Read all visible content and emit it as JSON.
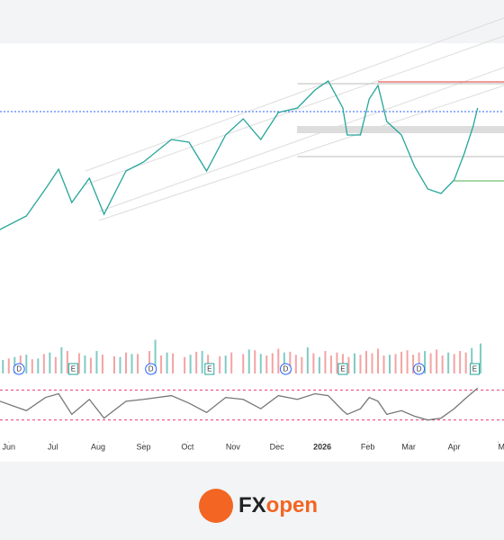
{
  "chart_data": [
    {
      "type": "line",
      "panel": "price",
      "x": [
        -6,
        12,
        25,
        34,
        43,
        55,
        65,
        80,
        92,
        111,
        123,
        135,
        148,
        160,
        172,
        184,
        197,
        209,
        218,
        228,
        231,
        240,
        246,
        252,
        258,
        268,
        277,
        286,
        295,
        304,
        311,
        317,
        320
      ],
      "series": [
        {
          "color": "#26a69a",
          "values": [
            55,
            70,
            100,
            122,
            85,
            112,
            72,
            120,
            130,
            155,
            152,
            120,
            160,
            178,
            155,
            185,
            190,
            210,
            220,
            190,
            160,
            160,
            200,
            215,
            175,
            160,
            125,
            100,
            95,
            110,
            140,
            170,
            190
          ]
        }
      ],
      "levels": [
        {
          "value": 186,
          "from": -6,
          "color": "#2962ff",
          "style": "dotted"
        },
        {
          "value": 219,
          "from": 252,
          "color": "#e53935",
          "style": "solid"
        },
        {
          "value": 217,
          "from": 197,
          "color": "#bbbbbb",
          "style": "solid"
        },
        {
          "value": 136,
          "from": 197,
          "color": "#bbbbbb",
          "style": "solid"
        },
        {
          "value": 109,
          "from": 304,
          "color": "#4caf50",
          "style": "solid"
        }
      ],
      "xlim": [
        -6,
        338
      ],
      "ylim": [
        -50,
        260
      ]
    },
    {
      "type": "bar",
      "panel": "volume",
      "series": [
        {
          "color": "#80cbc4",
          "x": [
            -4,
            4,
            12,
            20,
            28,
            36,
            52,
            60,
            76,
            84,
            100,
            108,
            124,
            132,
            148,
            164,
            172,
            188,
            204,
            212,
            236,
            260,
            284,
            300,
            316,
            322
          ],
          "values": [
            18,
            22,
            25,
            20,
            28,
            35,
            24,
            30,
            22,
            26,
            45,
            28,
            25,
            30,
            24,
            32,
            26,
            28,
            35,
            22,
            27,
            25,
            30,
            28,
            34,
            40
          ]
        },
        {
          "color": "#f4a3a3",
          "x": [
            0,
            8,
            16,
            24,
            32,
            40,
            48,
            56,
            64,
            72,
            80,
            88,
            96,
            104,
            112,
            120,
            128,
            136,
            144,
            152,
            160,
            168,
            176,
            180,
            184,
            192,
            196,
            200,
            208,
            216,
            220,
            224,
            228,
            232,
            240,
            244,
            248,
            252,
            256,
            264,
            268,
            272,
            276,
            280,
            288,
            292,
            296,
            304,
            308,
            312
          ],
          "values": [
            20,
            24,
            19,
            26,
            22,
            30,
            27,
            21,
            25,
            23,
            28,
            26,
            30,
            24,
            27,
            22,
            29,
            25,
            23,
            28,
            26,
            31,
            24,
            27,
            33,
            29,
            25,
            22,
            27,
            30,
            24,
            28,
            26,
            22,
            25,
            30,
            27,
            33,
            24,
            26,
            29,
            31,
            25,
            28,
            27,
            32,
            24,
            26,
            30,
            28
          ]
        }
      ],
      "events": [
        {
          "x": 7,
          "label": "D"
        },
        {
          "x": 44,
          "label": "E"
        },
        {
          "x": 97,
          "label": "D"
        },
        {
          "x": 137,
          "label": "E"
        },
        {
          "x": 189,
          "label": "D"
        },
        {
          "x": 228,
          "label": "E"
        },
        {
          "x": 280,
          "label": "D"
        },
        {
          "x": 318,
          "label": "E"
        }
      ],
      "xlim": [
        -6,
        338
      ],
      "ylim": [
        0,
        60
      ]
    },
    {
      "type": "line",
      "panel": "oscillator",
      "x": [
        -6,
        12,
        25,
        34,
        43,
        55,
        65,
        80,
        92,
        111,
        123,
        135,
        148,
        160,
        172,
        184,
        197,
        209,
        218,
        228,
        231,
        240,
        246,
        252,
        258,
        268,
        277,
        286,
        295,
        304,
        311,
        317,
        320
      ],
      "series": [
        {
          "color": "#777777",
          "values": [
            0.2,
            -0.3,
            0.4,
            0.6,
            -0.5,
            0.3,
            -0.7,
            0.2,
            0.3,
            0.5,
            0.1,
            -0.4,
            0.4,
            0.3,
            -0.2,
            0.5,
            0.3,
            0.6,
            0.5,
            -0.3,
            -0.5,
            -0.2,
            0.4,
            0.2,
            -0.5,
            -0.3,
            -0.6,
            -0.8,
            -0.7,
            -0.2,
            0.3,
            0.7,
            0.9
          ]
        }
      ],
      "ref_lines": [
        0.8,
        -0.8
      ],
      "xlim": [
        -6,
        338
      ],
      "ylim": [
        -1.2,
        1.2
      ],
      "xticks": [
        {
          "value": 0,
          "label": "Jun"
        },
        {
          "value": 30,
          "label": "Jul"
        },
        {
          "value": 61,
          "label": "Aug"
        },
        {
          "value": 92,
          "label": "Sep"
        },
        {
          "value": 122,
          "label": "Oct"
        },
        {
          "value": 153,
          "label": "Nov"
        },
        {
          "value": 183,
          "label": "Dec"
        },
        {
          "value": 214,
          "label": "2026"
        },
        {
          "value": 245,
          "label": "Feb"
        },
        {
          "value": 273,
          "label": "Mar"
        },
        {
          "value": 304,
          "label": "Apr"
        },
        {
          "value": 334,
          "label": "Ma"
        }
      ]
    }
  ],
  "logo": {
    "part1": "FX",
    "part2": "open"
  }
}
